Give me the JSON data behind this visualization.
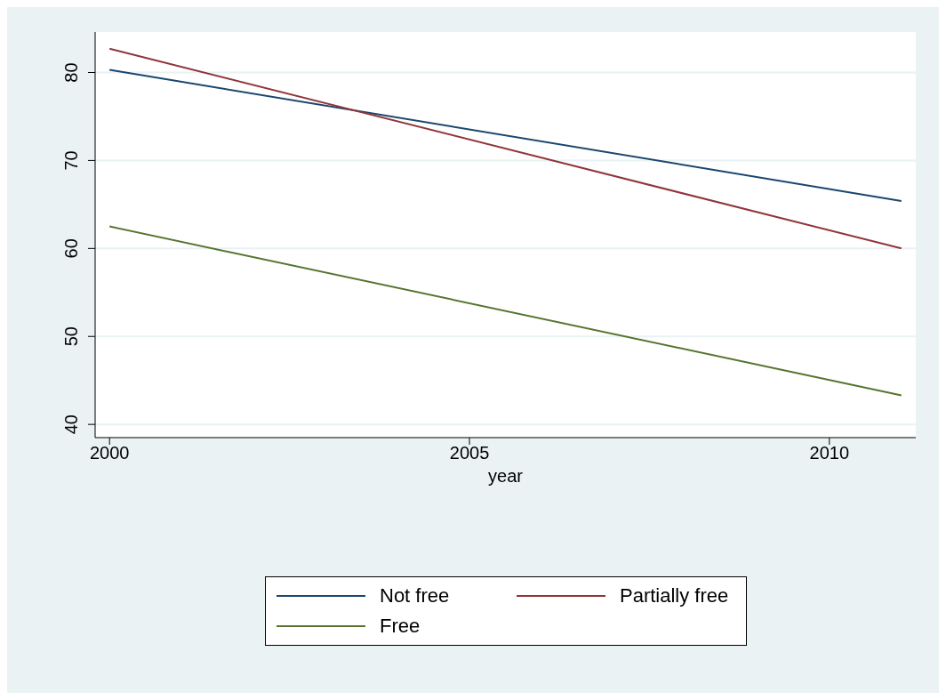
{
  "chart_data": {
    "type": "line",
    "xlabel": "year",
    "x": [
      2000,
      2011
    ],
    "series": [
      {
        "name": "Not free",
        "color": "#1a476f",
        "values": [
          80.3,
          65.4
        ]
      },
      {
        "name": "Partially free",
        "color": "#90353b",
        "values": [
          82.7,
          60.0
        ]
      },
      {
        "name": "Free",
        "color": "#55752f",
        "values": [
          62.5,
          43.3
        ]
      }
    ],
    "xlim": [
      1999.8,
      2011.2
    ],
    "xticks": [
      2000,
      2005,
      2010
    ],
    "ylim": [
      38.5,
      84.6
    ],
    "yticks": [
      40,
      50,
      60,
      70,
      80
    ],
    "grid": "y",
    "legend": "bottom",
    "marker": "none",
    "line_style": "solid"
  }
}
